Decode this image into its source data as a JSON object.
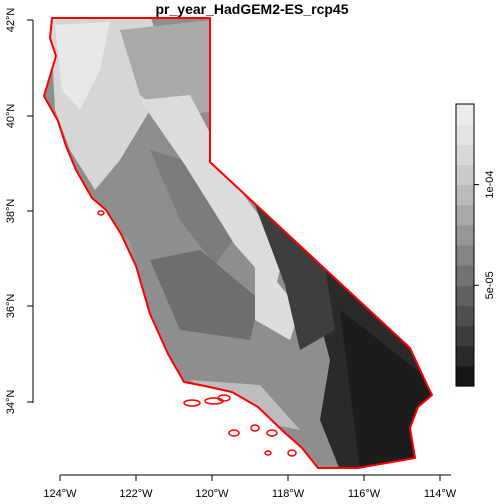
{
  "map": {
    "title": "pr_year_HadGEM2-ES_rcp45",
    "x_ticks": [
      "124°W",
      "122°W",
      "120°W",
      "118°W",
      "116°W",
      "114°W"
    ],
    "y_ticks": [
      "34°N",
      "36°N",
      "38°N",
      "40°N",
      "42°N"
    ],
    "border_color": "#ff0000",
    "legend": {
      "tick_labels": [
        "5e-05",
        "1e-04"
      ],
      "colors": [
        "#161616",
        "#2a2a2a",
        "#3c3c3c",
        "#4e4e4e",
        "#606060",
        "#727272",
        "#848484",
        "#969696",
        "#a8a8a8",
        "#bababa",
        "#cbcbcb",
        "#d8d8d8",
        "#e3e3e3",
        "#ececec"
      ]
    }
  },
  "chart_data": {
    "type": "heatmap",
    "title": "pr_year_HadGEM2-ES_rcp45",
    "x_ticks": [
      "124°W",
      "122°W",
      "120°W",
      "118°W",
      "116°W",
      "114°W"
    ],
    "y_ticks": [
      "34°N",
      "36°N",
      "38°N",
      "40°N",
      "42°N"
    ],
    "xlim": [
      -124.3,
      -113.9
    ],
    "ylim": [
      32.5,
      42.1
    ],
    "colorbar_ticks": [
      5e-05,
      0.0001
    ],
    "colorbar_range": [
      0,
      0.00014
    ]
  }
}
